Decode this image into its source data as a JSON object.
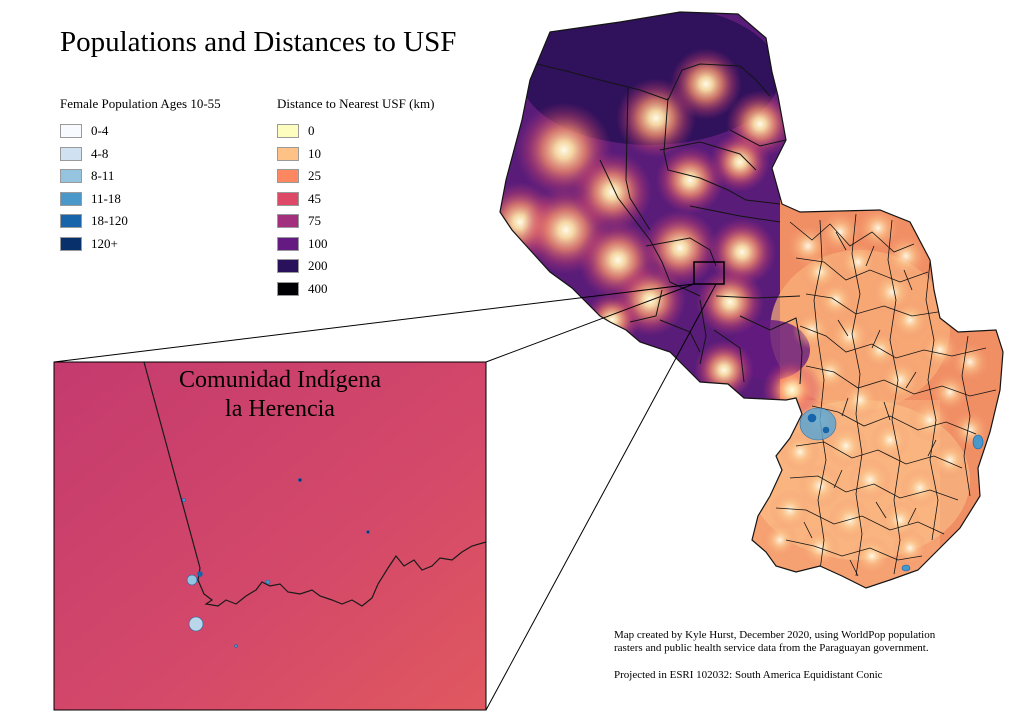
{
  "title": "Populations and Distances to USF",
  "legend_population": {
    "title": "Female Population Ages 10-55",
    "items": [
      {
        "label": "0-4",
        "color": "#f7fbff"
      },
      {
        "label": "4-8",
        "color": "#d0e1f2"
      },
      {
        "label": "8-11",
        "color": "#94c4df"
      },
      {
        "label": "11-18",
        "color": "#4a98c9"
      },
      {
        "label": "18-120",
        "color": "#1764ab"
      },
      {
        "label": "120+",
        "color": "#08306b"
      }
    ]
  },
  "legend_distance": {
    "title": "Distance to Nearest USF (km)",
    "items": [
      {
        "label": "0",
        "color": "#fcfdbf"
      },
      {
        "label": "10",
        "color": "#fec287"
      },
      {
        "label": "25",
        "color": "#fb8861"
      },
      {
        "label": "45",
        "color": "#de4968"
      },
      {
        "label": "75",
        "color": "#a3307e"
      },
      {
        "label": "100",
        "color": "#641a80"
      },
      {
        "label": "200",
        "color": "#2a115c"
      },
      {
        "label": "400",
        "color": "#000004"
      }
    ]
  },
  "inset": {
    "title_line1": "Comunidad Indígena",
    "title_line2": "la Herencia"
  },
  "credits": {
    "line1": "Map created by Kyle Hurst, December 2020, using WorldPop population rasters and public health service data from the Paraguayan government.",
    "line2": "Projected in ESRI 102032: South America Equidistant Conic"
  }
}
